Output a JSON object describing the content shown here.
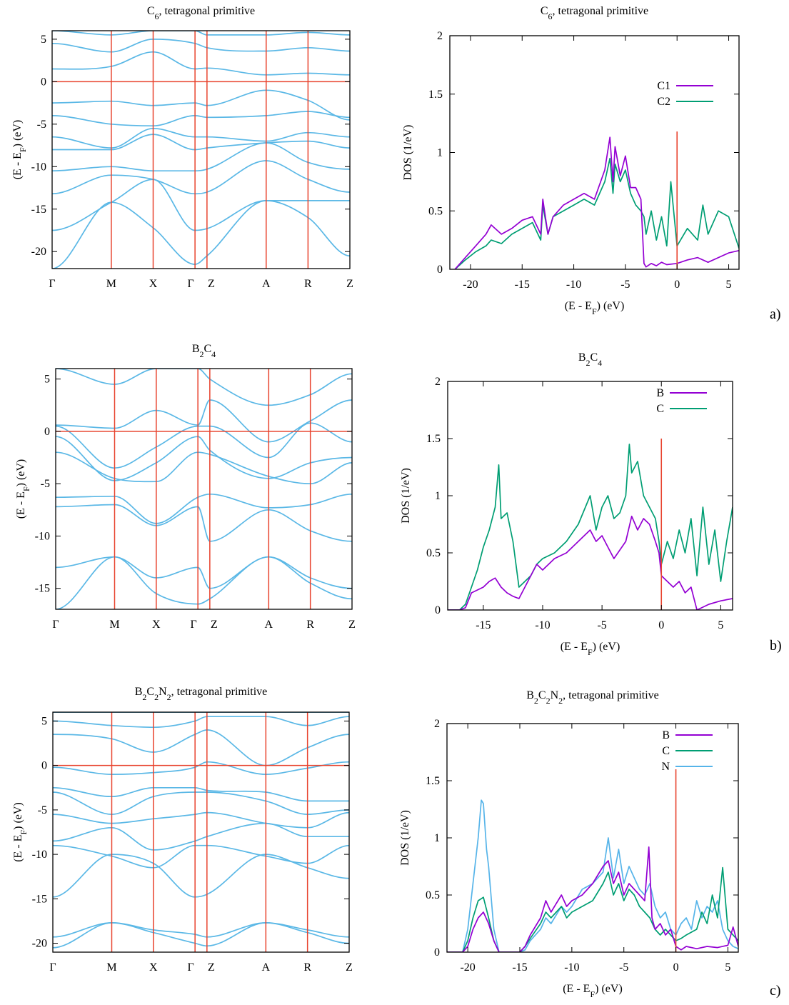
{
  "colors": {
    "band": "#5bb8e6",
    "fermi": "#e8432e",
    "B": "#9400d3",
    "C": "#009e73",
    "C1": "#9400d3",
    "C2": "#009e73",
    "N": "#56b4e9",
    "frame": "#000000"
  },
  "panel_labels": [
    "a)",
    "b)",
    "c)"
  ],
  "chart_data": [
    {
      "type": "line",
      "id": "band-a",
      "title": "C6, tetragonal primitive",
      "ylabel": "(E - E_F) (eV)",
      "ylim": [
        -22,
        6
      ],
      "yticks": [
        5,
        0,
        -5,
        -10,
        -15,
        -20
      ],
      "kpoints": [
        "Γ",
        "M",
        "X",
        "Γ",
        "Z",
        "A",
        "R",
        "Z"
      ],
      "kpos": [
        0,
        1.414,
        2.414,
        3.414,
        3.7,
        5.114,
        6.114,
        7.114
      ],
      "fermi": 0,
      "bands": [
        [
          -22,
          -14.2,
          -17.2,
          -21.5,
          -20.5,
          -14.0,
          -16.0,
          -20.5
        ],
        [
          -17.5,
          -14.2,
          -11.5,
          -17.5,
          -17.3,
          -14.0,
          -14.0,
          -14.0
        ],
        [
          -13.2,
          -11.0,
          -11.5,
          -13.2,
          -13.0,
          -9.3,
          -11.5,
          -13.0
        ],
        [
          -10.5,
          -10.0,
          -10.5,
          -10.5,
          -10.3,
          -7.2,
          -9.5,
          -10.3
        ],
        [
          -8.0,
          -8.0,
          -6.2,
          -8.0,
          -7.8,
          -7.2,
          -7.0,
          -7.8
        ],
        [
          -6.5,
          -7.8,
          -5.5,
          -6.5,
          -6.5,
          -7.0,
          -6.0,
          -6.5
        ],
        [
          -4.0,
          -5.0,
          -5.2,
          -4.0,
          -4.2,
          -4.0,
          -3.5,
          -4.2
        ],
        [
          -2.5,
          -2.3,
          -2.8,
          -2.5,
          -2.8,
          -1.0,
          -2.2,
          -4.5
        ],
        [
          1.5,
          1.8,
          3.5,
          1.5,
          1.6,
          0.8,
          1.0,
          0.8
        ],
        [
          4.5,
          3.5,
          5.0,
          4.5,
          4.0,
          3.6,
          4.0,
          3.6
        ],
        [
          6.0,
          5.5,
          6.0,
          6.0,
          5.5,
          5.5,
          5.8,
          5.5
        ]
      ]
    },
    {
      "type": "line",
      "id": "dos-a",
      "title": "C6, tetragonal primitive",
      "xlabel": "(E - E_F) (eV)",
      "ylabel": "DOS (1/eV)",
      "xlim": [
        -22,
        6
      ],
      "ylim": [
        0,
        2
      ],
      "xticks": [
        -20,
        -15,
        -10,
        -5,
        0,
        5
      ],
      "yticks": [
        0,
        0.5,
        1,
        1.5,
        2
      ],
      "fermi": 0,
      "fermi_height": 1.18,
      "legend_position": "top-right",
      "series": [
        {
          "name": "C1",
          "x": [
            -21.5,
            -20.5,
            -19.5,
            -18.5,
            -18,
            -17,
            -16,
            -15,
            -14,
            -13.2,
            -13,
            -12.5,
            -12,
            -11,
            -10,
            -9,
            -8,
            -7,
            -6.5,
            -6.2,
            -6,
            -5.5,
            -5,
            -4.5,
            -4,
            -3.5,
            -3.2,
            -3,
            -2.5,
            -2,
            -1.5,
            -1,
            0,
            1,
            2,
            3,
            4,
            5,
            6
          ],
          "y": [
            0,
            0.1,
            0.2,
            0.3,
            0.38,
            0.3,
            0.35,
            0.42,
            0.45,
            0.3,
            0.6,
            0.3,
            0.45,
            0.55,
            0.6,
            0.65,
            0.6,
            0.85,
            1.13,
            0.75,
            1.05,
            0.8,
            0.97,
            0.7,
            0.7,
            0.6,
            0.05,
            0.02,
            0.05,
            0.03,
            0.06,
            0.04,
            0.05,
            0.08,
            0.1,
            0.06,
            0.1,
            0.14,
            0.16
          ]
        },
        {
          "name": "C2",
          "x": [
            -21.5,
            -20.5,
            -19.5,
            -18.5,
            -18,
            -17,
            -16,
            -15,
            -14,
            -13.2,
            -13,
            -12.5,
            -12,
            -11,
            -10,
            -9,
            -8,
            -7,
            -6.5,
            -6.2,
            -6,
            -5.5,
            -5,
            -4.5,
            -4,
            -3.5,
            -3.2,
            -3,
            -2.5,
            -2,
            -1.5,
            -1,
            -0.6,
            0,
            1,
            2,
            2.5,
            3,
            4,
            5,
            6
          ],
          "y": [
            0,
            0.08,
            0.15,
            0.2,
            0.25,
            0.22,
            0.3,
            0.35,
            0.4,
            0.25,
            0.55,
            0.3,
            0.45,
            0.5,
            0.55,
            0.6,
            0.55,
            0.75,
            0.95,
            0.65,
            0.9,
            0.75,
            0.85,
            0.65,
            0.55,
            0.5,
            0.45,
            0.3,
            0.5,
            0.25,
            0.45,
            0.2,
            0.75,
            0.2,
            0.35,
            0.25,
            0.55,
            0.3,
            0.5,
            0.45,
            0.18
          ]
        }
      ]
    },
    {
      "type": "line",
      "id": "band-b",
      "title": "B2C4",
      "ylabel": "(E - E_F) (eV)",
      "ylim": [
        -17,
        6
      ],
      "yticks": [
        5,
        0,
        -5,
        -10,
        -15
      ],
      "kpoints": [
        "Γ",
        "M",
        "X",
        "Γ",
        "Z",
        "A",
        "R",
        "Z"
      ],
      "kpos": [
        0,
        1.414,
        2.414,
        3.414,
        3.7,
        5.114,
        6.114,
        7.114
      ],
      "fermi": 0,
      "bands": [
        [
          -17.0,
          -12.0,
          -15.5,
          -16.5,
          -16.0,
          -12.0,
          -14.5,
          -16.0
        ],
        [
          -13.0,
          -12.0,
          -14.0,
          -13.0,
          -15.0,
          -12.0,
          -14.0,
          -15.0
        ],
        [
          -7.2,
          -7.0,
          -9.0,
          -7.2,
          -10.5,
          -7.5,
          -9.5,
          -10.5
        ],
        [
          -6.3,
          -6.2,
          -8.8,
          -6.3,
          -6.0,
          -7.3,
          -7.0,
          -6.0
        ],
        [
          -2.0,
          -4.5,
          -4.8,
          -2.0,
          -2.2,
          -4.3,
          -5.0,
          -3.0
        ],
        [
          -0.5,
          -4.7,
          -3.0,
          -0.5,
          -1.8,
          -4.5,
          -3.0,
          -2.5
        ],
        [
          0.5,
          -3.5,
          -1.5,
          0.5,
          0.5,
          -2.5,
          0.8,
          -1.0
        ],
        [
          0.6,
          0.3,
          2.0,
          0.6,
          3.0,
          -1.0,
          1.0,
          3.0
        ],
        [
          6.0,
          4.5,
          6.0,
          6.0,
          5.0,
          2.5,
          3.5,
          5.5
        ]
      ]
    },
    {
      "type": "line",
      "id": "dos-b",
      "title": "B2C4",
      "xlabel": "(E - E_F) (eV)",
      "ylabel": "DOS (1/eV)",
      "xlim": [
        -18,
        6
      ],
      "ylim": [
        0,
        2
      ],
      "xticks": [
        -15,
        -10,
        -5,
        0,
        5
      ],
      "yticks": [
        0,
        0.5,
        1,
        1.5,
        2
      ],
      "fermi": 0,
      "fermi_height": 1.5,
      "legend_position": "top-right",
      "series": [
        {
          "name": "B",
          "x": [
            -18,
            -17,
            -16.5,
            -16,
            -15,
            -14.5,
            -14,
            -13.5,
            -13,
            -12.5,
            -12,
            -11.5,
            -11,
            -10.5,
            -10,
            -9,
            -8,
            -7,
            -6,
            -5.5,
            -5,
            -4.5,
            -4,
            -3,
            -2.5,
            -2,
            -1.5,
            -1,
            -0.5,
            -0.2,
            0,
            0.5,
            1,
            1.5,
            2,
            2.5,
            3,
            4,
            5,
            6
          ],
          "y": [
            0,
            0,
            0.02,
            0.15,
            0.2,
            0.25,
            0.28,
            0.2,
            0.15,
            0.12,
            0.1,
            0.2,
            0.3,
            0.4,
            0.35,
            0.45,
            0.5,
            0.6,
            0.7,
            0.6,
            0.65,
            0.55,
            0.45,
            0.6,
            0.82,
            0.7,
            0.8,
            0.75,
            0.6,
            0.5,
            0.3,
            0.25,
            0.2,
            0.25,
            0.15,
            0.2,
            0.0,
            0.05,
            0.08,
            0.1
          ]
        },
        {
          "name": "C",
          "x": [
            -18,
            -17,
            -16.5,
            -16,
            -15.5,
            -15,
            -14.5,
            -14,
            -13.7,
            -13.5,
            -13,
            -12.5,
            -12,
            -11.5,
            -11,
            -10.5,
            -10,
            -9,
            -8,
            -7,
            -6,
            -5.5,
            -5,
            -4.5,
            -4,
            -3.5,
            -3,
            -2.7,
            -2.5,
            -2,
            -1.5,
            -1,
            -0.5,
            -0.2,
            0,
            0.5,
            1,
            1.5,
            2,
            2.5,
            3,
            3.5,
            4,
            4.5,
            5,
            5.5,
            6
          ],
          "y": [
            0,
            0,
            0.05,
            0.2,
            0.35,
            0.55,
            0.7,
            0.9,
            1.27,
            0.8,
            0.85,
            0.6,
            0.2,
            0.25,
            0.3,
            0.4,
            0.45,
            0.5,
            0.6,
            0.75,
            1.0,
            0.7,
            0.9,
            1.0,
            0.8,
            0.85,
            1.0,
            1.45,
            1.2,
            1.3,
            1.0,
            0.9,
            0.8,
            0.6,
            0.4,
            0.6,
            0.45,
            0.7,
            0.5,
            0.8,
            0.3,
            0.9,
            0.4,
            0.7,
            0.25,
            0.6,
            0.9
          ]
        }
      ]
    },
    {
      "type": "line",
      "id": "band-c",
      "title": "B2C2N2, tetragonal primitive",
      "ylabel": "(E - E_F) (eV)",
      "ylim": [
        -21,
        6
      ],
      "yticks": [
        5,
        0,
        -5,
        -10,
        -15,
        -20
      ],
      "kpoints": [
        "Γ",
        "M",
        "X",
        "Γ",
        "Z",
        "A",
        "R",
        "Z"
      ],
      "kpos": [
        0,
        1.414,
        2.414,
        3.414,
        3.7,
        5.114,
        6.114,
        7.114
      ],
      "fermi": 0,
      "bands": [
        [
          -20.5,
          -17.7,
          -18.8,
          -20.0,
          -20.3,
          -17.7,
          -18.8,
          -20.0
        ],
        [
          -19.3,
          -17.7,
          -18.5,
          -19.0,
          -19.3,
          -17.7,
          -18.5,
          -19.3
        ],
        [
          -14.8,
          -10.0,
          -11.0,
          -14.8,
          -14.5,
          -10.0,
          -11.5,
          -12.7
        ],
        [
          -9.0,
          -10.2,
          -11.5,
          -9.0,
          -9.0,
          -10.2,
          -11.0,
          -9.0
        ],
        [
          -8.5,
          -7.0,
          -9.5,
          -8.5,
          -8.0,
          -6.5,
          -8.0,
          -8.0
        ],
        [
          -5.5,
          -6.5,
          -6.0,
          -5.5,
          -5.3,
          -6.5,
          -7.0,
          -5.3
        ],
        [
          -3.0,
          -5.5,
          -3.5,
          -3.0,
          -3.0,
          -4.0,
          -5.5,
          -5.0
        ],
        [
          -2.5,
          -3.5,
          -2.5,
          -2.5,
          -2.8,
          -3.0,
          -4.0,
          -4.0
        ],
        [
          -0.2,
          -1.0,
          -0.8,
          -0.2,
          0.4,
          -1.0,
          -0.3,
          0.4
        ],
        [
          3.5,
          3.0,
          1.5,
          3.5,
          4.0,
          0.0,
          2.0,
          3.5
        ],
        [
          5.0,
          4.5,
          4.3,
          5.0,
          5.5,
          5.5,
          4.5,
          5.5
        ],
        [
          6.0,
          6.0,
          6.0,
          6.0,
          6.0,
          6.0,
          6.0,
          6.0
        ]
      ]
    },
    {
      "type": "line",
      "id": "dos-c",
      "title": "B2C2N2, tetragonal primitive",
      "xlabel": "(E - E_F) (eV)",
      "ylabel": "DOS (1/eV)",
      "xlim": [
        -22,
        6
      ],
      "ylim": [
        0,
        2
      ],
      "xticks": [
        -20,
        -15,
        -10,
        -5,
        0,
        5
      ],
      "yticks": [
        0,
        0.5,
        1,
        1.5,
        2
      ],
      "fermi": 0,
      "fermi_height": 1.6,
      "legend_position": "top-right",
      "series": [
        {
          "name": "B",
          "x": [
            -22,
            -20.5,
            -20,
            -19.5,
            -19,
            -18.5,
            -18,
            -17.5,
            -17,
            -16,
            -15,
            -14.5,
            -14,
            -13,
            -12.5,
            -12,
            -11,
            -10.5,
            -10,
            -9,
            -8,
            -7,
            -6.5,
            -6,
            -5.5,
            -5,
            -4.5,
            -4,
            -3.5,
            -3,
            -2.6,
            -2.3,
            -2,
            -1.5,
            -1,
            -0.5,
            0,
            0.5,
            1,
            2,
            3,
            4,
            5,
            5.5,
            6
          ],
          "y": [
            0,
            0,
            0.05,
            0.2,
            0.3,
            0.35,
            0.25,
            0.1,
            0,
            0,
            0,
            0.05,
            0.15,
            0.3,
            0.45,
            0.35,
            0.5,
            0.4,
            0.45,
            0.5,
            0.6,
            0.75,
            0.8,
            0.6,
            0.7,
            0.5,
            0.6,
            0.55,
            0.5,
            0.45,
            0.92,
            0.3,
            0.2,
            0.25,
            0.15,
            0.2,
            0.05,
            0.02,
            0.05,
            0.03,
            0.05,
            0.04,
            0.06,
            0.22,
            0.05
          ]
        },
        {
          "name": "C",
          "x": [
            -22,
            -20.5,
            -20,
            -19.5,
            -19,
            -18.5,
            -18,
            -17.5,
            -17,
            -16,
            -15,
            -14.5,
            -14,
            -13,
            -12.5,
            -12,
            -11,
            -10.5,
            -10,
            -9,
            -8,
            -7,
            -6.5,
            -6,
            -5.5,
            -5,
            -4.5,
            -4,
            -3.5,
            -3,
            -2.5,
            -2,
            -1.5,
            -1,
            -0.5,
            0,
            0.5,
            1,
            2,
            2.5,
            3,
            3.5,
            4,
            4.5,
            5,
            5.5,
            6
          ],
          "y": [
            0,
            0,
            0.1,
            0.3,
            0.45,
            0.48,
            0.3,
            0.1,
            0,
            0,
            0,
            0.05,
            0.12,
            0.25,
            0.35,
            0.3,
            0.4,
            0.3,
            0.35,
            0.4,
            0.45,
            0.6,
            0.7,
            0.5,
            0.6,
            0.45,
            0.55,
            0.5,
            0.4,
            0.35,
            0.3,
            0.2,
            0.15,
            0.2,
            0.15,
            0.1,
            0.12,
            0.15,
            0.2,
            0.35,
            0.25,
            0.5,
            0.3,
            0.74,
            0.2,
            0.15,
            0.1
          ]
        },
        {
          "name": "N",
          "x": [
            -22,
            -20.5,
            -20,
            -19.5,
            -19,
            -18.7,
            -18.5,
            -18.2,
            -18,
            -17.5,
            -17,
            -16,
            -15,
            -14.5,
            -14,
            -13,
            -12.5,
            -12,
            -11,
            -10.5,
            -10,
            -9,
            -8,
            -7,
            -6.5,
            -6,
            -5.5,
            -5,
            -4.5,
            -4,
            -3.5,
            -3,
            -2.5,
            -2,
            -1.5,
            -1,
            -0.5,
            0,
            0.5,
            1,
            1.5,
            2,
            2.5,
            3,
            3.5,
            4,
            4.5,
            5,
            5.5,
            6
          ],
          "y": [
            0,
            0,
            0.2,
            0.6,
            1.0,
            1.33,
            1.3,
            0.9,
            0.75,
            0.2,
            0,
            0,
            0,
            0.02,
            0.1,
            0.2,
            0.3,
            0.25,
            0.4,
            0.35,
            0.4,
            0.55,
            0.6,
            0.7,
            1.0,
            0.65,
            0.9,
            0.6,
            0.75,
            0.65,
            0.55,
            0.5,
            0.6,
            0.4,
            0.3,
            0.35,
            0.2,
            0.15,
            0.25,
            0.3,
            0.2,
            0.45,
            0.3,
            0.4,
            0.35,
            0.45,
            0.2,
            0.1,
            0.05,
            0.03
          ]
        }
      ]
    }
  ]
}
